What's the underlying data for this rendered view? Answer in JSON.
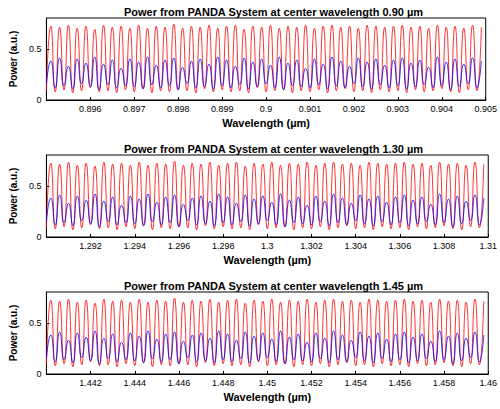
{
  "chart_data": [
    {
      "type": "line",
      "title": "Power from PANDA System at center wavelength 0.90 µm",
      "xlabel": "Wavelength (µm)",
      "ylabel": "Power (a.u.)",
      "xlim": [
        0.895,
        0.905
      ],
      "xticks": [
        0.896,
        0.897,
        0.898,
        0.899,
        0.9,
        0.901,
        0.902,
        0.903,
        0.904,
        0.905
      ],
      "ylim": [
        0,
        0.8
      ],
      "yticks": [
        0,
        0.5
      ],
      "grid": false,
      "x": [
        0.895,
        0.8951,
        0.8952,
        0.8953,
        0.8954,
        0.8955,
        0.8956,
        0.8957,
        0.8958,
        0.8959,
        0.896,
        0.8961,
        0.8962,
        0.8963,
        0.8964,
        0.8965,
        0.8966,
        0.8967,
        0.8968,
        0.8969,
        0.897,
        0.8971,
        0.8972,
        0.8973,
        0.8974,
        0.8975,
        0.8976,
        0.8977,
        0.8978,
        0.8979,
        0.898,
        0.8981,
        0.8982,
        0.8983,
        0.8984,
        0.8985,
        0.8986,
        0.8987,
        0.8988,
        0.8989,
        0.899,
        0.8991,
        0.8992,
        0.8993,
        0.8994,
        0.8995,
        0.8996,
        0.8997,
        0.8998,
        0.8999,
        0.9,
        0.9001,
        0.9002,
        0.9003,
        0.9004,
        0.9005,
        0.9006,
        0.9007,
        0.9008,
        0.9009,
        0.901,
        0.9011,
        0.9012,
        0.9013,
        0.9014,
        0.9015,
        0.9016,
        0.9017,
        0.9018,
        0.9019,
        0.902,
        0.9021,
        0.9022,
        0.9023,
        0.9024,
        0.9025,
        0.9026,
        0.9027,
        0.9028,
        0.9029,
        0.903,
        0.9031,
        0.9032,
        0.9033,
        0.9034,
        0.9035,
        0.9036,
        0.9037,
        0.9038,
        0.9039,
        0.904,
        0.9041,
        0.9042,
        0.9043,
        0.9044,
        0.9045,
        0.9046,
        0.9047,
        0.9048,
        0.9049
      ],
      "series": [
        {
          "color": "#ff0000",
          "values": [
            0.09,
            0.72,
            0.08,
            0.71,
            0.1,
            0.73,
            0.07,
            0.7,
            0.09,
            0.72,
            0.12,
            0.69,
            0.08,
            0.73,
            0.09,
            0.71,
            0.07,
            0.72,
            0.1,
            0.7,
            0.08,
            0.73,
            0.11,
            0.7,
            0.07,
            0.72,
            0.09,
            0.71,
            0.08,
            0.74,
            0.1,
            0.7,
            0.09,
            0.72,
            0.07,
            0.71,
            0.11,
            0.73,
            0.08,
            0.7,
            0.1,
            0.72,
            0.08,
            0.73,
            0.09,
            0.69,
            0.07,
            0.72,
            0.12,
            0.71,
            0.08,
            0.73,
            0.09,
            0.7,
            0.1,
            0.72,
            0.07,
            0.71,
            0.09,
            0.73,
            0.08,
            0.7,
            0.1,
            0.72,
            0.07,
            0.73,
            0.09,
            0.71,
            0.11,
            0.72,
            0.08,
            0.7,
            0.09,
            0.73,
            0.07,
            0.72,
            0.1,
            0.71,
            0.08,
            0.72,
            0.09,
            0.73,
            0.07,
            0.71,
            0.1,
            0.72,
            0.08,
            0.7,
            0.09,
            0.73,
            0.11,
            0.71,
            0.08,
            0.72,
            0.07,
            0.7,
            0.1,
            0.73,
            0.09,
            0.71
          ]
        },
        {
          "color": "#0000ff",
          "values": [
            0.15,
            0.38,
            0.12,
            0.41,
            0.14,
            0.33,
            0.11,
            0.4,
            0.16,
            0.36,
            0.13,
            0.42,
            0.1,
            0.35,
            0.15,
            0.39,
            0.12,
            0.31,
            0.14,
            0.4,
            0.13,
            0.37,
            0.11,
            0.42,
            0.15,
            0.34,
            0.12,
            0.39,
            0.14,
            0.41,
            0.1,
            0.32,
            0.16,
            0.38,
            0.12,
            0.4,
            0.13,
            0.35,
            0.11,
            0.42,
            0.14,
            0.39,
            0.12,
            0.33,
            0.15,
            0.41,
            0.11,
            0.37,
            0.13,
            0.4,
            0.16,
            0.34,
            0.12,
            0.42,
            0.1,
            0.36,
            0.14,
            0.39,
            0.13,
            0.31,
            0.12,
            0.4,
            0.15,
            0.35,
            0.11,
            0.42,
            0.14,
            0.38,
            0.12,
            0.33,
            0.16,
            0.41,
            0.13,
            0.37,
            0.11,
            0.4,
            0.15,
            0.34,
            0.12,
            0.39,
            0.14,
            0.41,
            0.11,
            0.36,
            0.13,
            0.39,
            0.15,
            0.32,
            0.12,
            0.42,
            0.14,
            0.37,
            0.1,
            0.4,
            0.13,
            0.35,
            0.16,
            0.41,
            0.12,
            0.38
          ]
        }
      ]
    },
    {
      "type": "line",
      "title": "Power from PANDA System at center wavelength 1.30 µm",
      "xlabel": "Wavelength (µm)",
      "ylabel": "Power (a.u.)",
      "xlim": [
        1.29,
        1.31
      ],
      "xticks": [
        1.292,
        1.294,
        1.296,
        1.298,
        1.3,
        1.302,
        1.304,
        1.306,
        1.308,
        1.31
      ],
      "ylim": [
        0,
        0.8
      ],
      "yticks": [
        0,
        0.5
      ],
      "grid": false,
      "x": [
        1.29,
        1.2902,
        1.2904,
        1.2906,
        1.2908,
        1.291,
        1.2912,
        1.2914,
        1.2916,
        1.2918,
        1.292,
        1.2922,
        1.2924,
        1.2926,
        1.2928,
        1.293,
        1.2932,
        1.2934,
        1.2936,
        1.2938,
        1.294,
        1.2942,
        1.2944,
        1.2946,
        1.2948,
        1.295,
        1.2952,
        1.2954,
        1.2956,
        1.2958,
        1.296,
        1.2962,
        1.2964,
        1.2966,
        1.2968,
        1.297,
        1.2972,
        1.2974,
        1.2976,
        1.2978,
        1.298,
        1.2982,
        1.2984,
        1.2986,
        1.2988,
        1.299,
        1.2992,
        1.2994,
        1.2996,
        1.2998,
        1.3,
        1.3002,
        1.3004,
        1.3006,
        1.3008,
        1.301,
        1.3012,
        1.3014,
        1.3016,
        1.3018,
        1.302,
        1.3022,
        1.3024,
        1.3026,
        1.3028,
        1.303,
        1.3032,
        1.3034,
        1.3036,
        1.3038,
        1.304,
        1.3042,
        1.3044,
        1.3046,
        1.3048,
        1.305,
        1.3052,
        1.3054,
        1.3056,
        1.3058,
        1.306,
        1.3062,
        1.3064,
        1.3066,
        1.3068,
        1.307,
        1.3072,
        1.3074,
        1.3076,
        1.3078,
        1.308,
        1.3082,
        1.3084,
        1.3086,
        1.3088,
        1.309,
        1.3092,
        1.3094,
        1.3096,
        1.3098
      ],
      "series": [
        {
          "color": "#ff0000",
          "values": [
            0.09,
            0.72,
            0.08,
            0.71,
            0.1,
            0.73,
            0.07,
            0.7,
            0.09,
            0.72,
            0.12,
            0.69,
            0.08,
            0.73,
            0.09,
            0.71,
            0.07,
            0.72,
            0.1,
            0.7,
            0.08,
            0.73,
            0.11,
            0.7,
            0.07,
            0.72,
            0.09,
            0.71,
            0.08,
            0.74,
            0.1,
            0.7,
            0.09,
            0.72,
            0.07,
            0.71,
            0.11,
            0.73,
            0.08,
            0.7,
            0.1,
            0.72,
            0.08,
            0.73,
            0.09,
            0.69,
            0.07,
            0.72,
            0.12,
            0.71,
            0.08,
            0.73,
            0.09,
            0.7,
            0.1,
            0.72,
            0.07,
            0.71,
            0.09,
            0.73,
            0.08,
            0.7,
            0.1,
            0.72,
            0.07,
            0.73,
            0.09,
            0.71,
            0.11,
            0.72,
            0.08,
            0.7,
            0.09,
            0.73,
            0.07,
            0.72,
            0.1,
            0.71,
            0.08,
            0.72,
            0.09,
            0.73,
            0.07,
            0.71,
            0.1,
            0.72,
            0.08,
            0.7,
            0.09,
            0.73,
            0.11,
            0.71,
            0.08,
            0.72,
            0.07,
            0.7,
            0.1,
            0.73,
            0.09,
            0.71
          ]
        },
        {
          "color": "#0000ff",
          "values": [
            0.15,
            0.38,
            0.12,
            0.41,
            0.14,
            0.33,
            0.11,
            0.4,
            0.16,
            0.36,
            0.13,
            0.42,
            0.1,
            0.35,
            0.15,
            0.39,
            0.12,
            0.31,
            0.14,
            0.4,
            0.13,
            0.37,
            0.11,
            0.42,
            0.15,
            0.34,
            0.12,
            0.39,
            0.14,
            0.41,
            0.1,
            0.32,
            0.16,
            0.38,
            0.12,
            0.4,
            0.13,
            0.35,
            0.11,
            0.42,
            0.14,
            0.39,
            0.12,
            0.33,
            0.15,
            0.41,
            0.11,
            0.37,
            0.13,
            0.4,
            0.16,
            0.34,
            0.12,
            0.42,
            0.1,
            0.36,
            0.14,
            0.39,
            0.13,
            0.31,
            0.12,
            0.4,
            0.15,
            0.35,
            0.11,
            0.42,
            0.14,
            0.38,
            0.12,
            0.33,
            0.16,
            0.41,
            0.13,
            0.37,
            0.11,
            0.4,
            0.15,
            0.34,
            0.12,
            0.39,
            0.14,
            0.41,
            0.11,
            0.36,
            0.13,
            0.39,
            0.15,
            0.32,
            0.12,
            0.42,
            0.14,
            0.37,
            0.1,
            0.4,
            0.13,
            0.35,
            0.16,
            0.41,
            0.12,
            0.38
          ]
        }
      ]
    },
    {
      "type": "line",
      "title": "Power from PANDA System at center wavelength 1.45 µm",
      "xlabel": "Wavelength (µm)",
      "ylabel": "Power (a.u.)",
      "xlim": [
        1.44,
        1.46
      ],
      "xticks": [
        1.442,
        1.444,
        1.446,
        1.448,
        1.45,
        1.452,
        1.454,
        1.456,
        1.458,
        1.46
      ],
      "ylim": [
        0,
        0.8
      ],
      "yticks": [
        0,
        0.5
      ],
      "grid": false,
      "x": [
        1.44,
        1.4402,
        1.4404,
        1.4406,
        1.4408,
        1.441,
        1.4412,
        1.4414,
        1.4416,
        1.4418,
        1.442,
        1.4422,
        1.4424,
        1.4426,
        1.4428,
        1.443,
        1.4432,
        1.4434,
        1.4436,
        1.4438,
        1.444,
        1.4442,
        1.4444,
        1.4446,
        1.4448,
        1.445,
        1.4452,
        1.4454,
        1.4456,
        1.4458,
        1.446,
        1.4462,
        1.4464,
        1.4466,
        1.4468,
        1.447,
        1.4472,
        1.4474,
        1.4476,
        1.4478,
        1.448,
        1.4482,
        1.4484,
        1.4486,
        1.4488,
        1.449,
        1.4492,
        1.4494,
        1.4496,
        1.4498,
        1.45,
        1.4502,
        1.4504,
        1.4506,
        1.4508,
        1.451,
        1.4512,
        1.4514,
        1.4516,
        1.4518,
        1.452,
        1.4522,
        1.4524,
        1.4526,
        1.4528,
        1.453,
        1.4532,
        1.4534,
        1.4536,
        1.4538,
        1.454,
        1.4542,
        1.4544,
        1.4546,
        1.4548,
        1.455,
        1.4552,
        1.4554,
        1.4556,
        1.4558,
        1.456,
        1.4562,
        1.4564,
        1.4566,
        1.4568,
        1.457,
        1.4572,
        1.4574,
        1.4576,
        1.4578,
        1.458,
        1.4582,
        1.4584,
        1.4586,
        1.4588,
        1.459,
        1.4592,
        1.4594,
        1.4596,
        1.4598
      ],
      "series": [
        {
          "color": "#ff0000",
          "values": [
            0.09,
            0.72,
            0.08,
            0.71,
            0.1,
            0.73,
            0.07,
            0.7,
            0.09,
            0.72,
            0.12,
            0.69,
            0.08,
            0.73,
            0.09,
            0.71,
            0.07,
            0.72,
            0.1,
            0.7,
            0.08,
            0.73,
            0.11,
            0.7,
            0.07,
            0.72,
            0.09,
            0.71,
            0.08,
            0.74,
            0.1,
            0.7,
            0.09,
            0.72,
            0.07,
            0.71,
            0.11,
            0.73,
            0.08,
            0.7,
            0.1,
            0.72,
            0.08,
            0.73,
            0.09,
            0.69,
            0.07,
            0.72,
            0.12,
            0.71,
            0.08,
            0.73,
            0.09,
            0.7,
            0.1,
            0.72,
            0.07,
            0.71,
            0.09,
            0.73,
            0.08,
            0.7,
            0.1,
            0.72,
            0.07,
            0.73,
            0.09,
            0.71,
            0.11,
            0.72,
            0.08,
            0.7,
            0.09,
            0.73,
            0.07,
            0.72,
            0.1,
            0.71,
            0.08,
            0.72,
            0.09,
            0.73,
            0.07,
            0.71,
            0.1,
            0.72,
            0.08,
            0.7,
            0.09,
            0.73,
            0.11,
            0.71,
            0.08,
            0.72,
            0.07,
            0.7,
            0.1,
            0.73,
            0.09,
            0.71
          ]
        },
        {
          "color": "#0000ff",
          "values": [
            0.15,
            0.38,
            0.12,
            0.41,
            0.14,
            0.33,
            0.11,
            0.4,
            0.16,
            0.36,
            0.13,
            0.42,
            0.1,
            0.35,
            0.15,
            0.39,
            0.12,
            0.31,
            0.14,
            0.4,
            0.13,
            0.37,
            0.11,
            0.42,
            0.15,
            0.34,
            0.12,
            0.39,
            0.14,
            0.41,
            0.1,
            0.32,
            0.16,
            0.38,
            0.12,
            0.4,
            0.13,
            0.35,
            0.11,
            0.42,
            0.14,
            0.39,
            0.12,
            0.33,
            0.15,
            0.41,
            0.11,
            0.37,
            0.13,
            0.4,
            0.16,
            0.34,
            0.12,
            0.42,
            0.1,
            0.36,
            0.14,
            0.39,
            0.13,
            0.31,
            0.12,
            0.4,
            0.15,
            0.35,
            0.11,
            0.42,
            0.14,
            0.38,
            0.12,
            0.33,
            0.16,
            0.41,
            0.13,
            0.37,
            0.11,
            0.4,
            0.15,
            0.34,
            0.12,
            0.39,
            0.14,
            0.41,
            0.11,
            0.36,
            0.13,
            0.39,
            0.15,
            0.32,
            0.12,
            0.42,
            0.14,
            0.37,
            0.1,
            0.4,
            0.13,
            0.35,
            0.16,
            0.41,
            0.12,
            0.38
          ]
        }
      ]
    }
  ]
}
